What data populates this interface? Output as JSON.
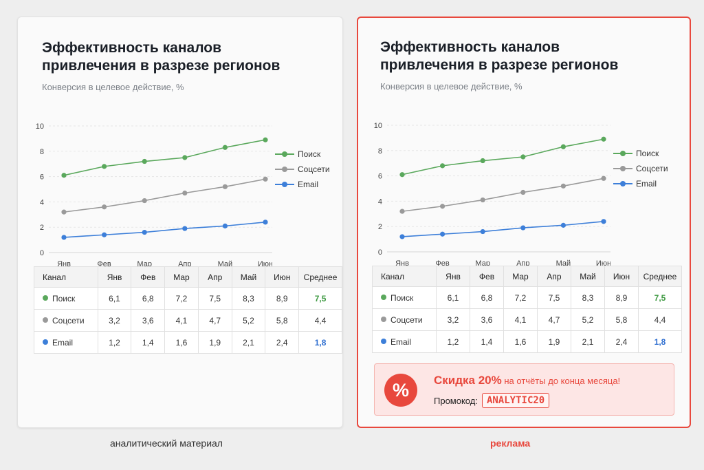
{
  "chart_data": {
    "type": "line",
    "title": "Эффективность каналов привлечения в разрезе регионов",
    "subtitle": "Конверсия в целевое действие, %",
    "categories": [
      "Янв",
      "Фев",
      "Мар",
      "Апр",
      "Май",
      "Июн"
    ],
    "ylim": [
      0,
      10
    ],
    "yticks": [
      0,
      2,
      4,
      6,
      8,
      10
    ],
    "grid": true,
    "legend_position": "right",
    "series": [
      {
        "name": "Поиск",
        "color": "#5aa85c",
        "values": [
          6.1,
          6.8,
          7.2,
          7.5,
          8.3,
          8.9
        ]
      },
      {
        "name": "Соцсети",
        "color": "#9a9a9a",
        "values": [
          3.2,
          3.6,
          4.1,
          4.7,
          5.2,
          5.8
        ]
      },
      {
        "name": "Email",
        "color": "#3d7fd9",
        "values": [
          1.2,
          1.4,
          1.6,
          1.9,
          2.1,
          2.4
        ]
      }
    ]
  },
  "table": {
    "headers": [
      "Канал",
      "Янв",
      "Фев",
      "Мар",
      "Апр",
      "Май",
      "Июн",
      "Среднее"
    ],
    "rows": [
      {
        "channel": "Поиск",
        "color": "#5aa85c",
        "cells": [
          "6,1",
          "6,8",
          "7,2",
          "7,5",
          "8,3",
          "8,9"
        ],
        "avg": "7,5",
        "avg_color": "#3f9a43"
      },
      {
        "channel": "Соцсети",
        "color": "#9a9a9a",
        "cells": [
          "3,2",
          "3,6",
          "4,1",
          "4,7",
          "5,2",
          "5,8"
        ],
        "avg": "4,4",
        "avg_color": "#333333"
      },
      {
        "channel": "Email",
        "color": "#3d7fd9",
        "cells": [
          "1,2",
          "1,4",
          "1,6",
          "1,9",
          "2,1",
          "2,4"
        ],
        "avg": "1,8",
        "avg_color": "#2f6fd0"
      }
    ]
  },
  "captions": {
    "left": "аналитический материал",
    "right": "реклама"
  },
  "promo": {
    "icon": "%",
    "headline_big": "Скидка 20%",
    "headline_rest": "на отчёты до конца месяца!",
    "code_label": "Промокод:",
    "code": "ANALYTIC20"
  },
  "colors": {
    "accent_red": "#e8483d"
  }
}
